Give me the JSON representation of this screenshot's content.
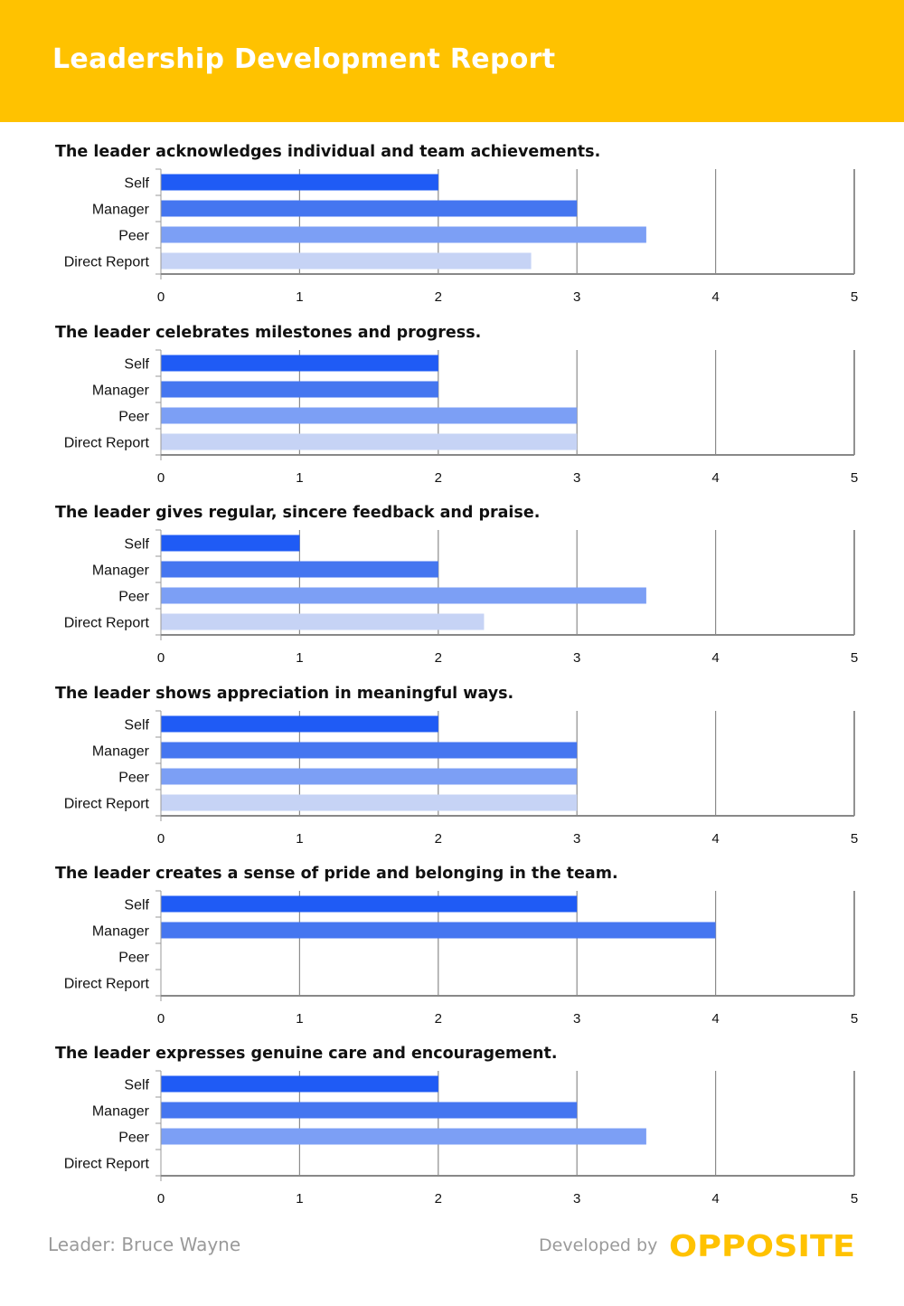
{
  "header": {
    "title": "Leadership Development Report"
  },
  "chart_data": [
    {
      "type": "bar",
      "title": "The leader acknowledges individual and team achievements.",
      "categories": [
        "Self",
        "Manager",
        "Peer",
        "Direct Report"
      ],
      "values": [
        2,
        3,
        3.5,
        2.67
      ],
      "xlim": [
        0,
        5
      ],
      "ticks": [
        "0",
        "1",
        "2",
        "3",
        "4",
        "5"
      ],
      "orientation": "horizontal",
      "grid": true
    },
    {
      "type": "bar",
      "title": "The leader celebrates milestones and progress.",
      "categories": [
        "Self",
        "Manager",
        "Peer",
        "Direct Report"
      ],
      "values": [
        2,
        2,
        3,
        3
      ],
      "xlim": [
        0,
        5
      ],
      "ticks": [
        "0",
        "1",
        "2",
        "3",
        "4",
        "5"
      ],
      "orientation": "horizontal",
      "grid": true
    },
    {
      "type": "bar",
      "title": "The leader gives regular, sincere feedback and praise.",
      "categories": [
        "Self",
        "Manager",
        "Peer",
        "Direct Report"
      ],
      "values": [
        1,
        2,
        3.5,
        2.33
      ],
      "xlim": [
        0,
        5
      ],
      "ticks": [
        "0",
        "1",
        "2",
        "3",
        "4",
        "5"
      ],
      "orientation": "horizontal",
      "grid": true
    },
    {
      "type": "bar",
      "title": "The leader shows appreciation in meaningful ways.",
      "categories": [
        "Self",
        "Manager",
        "Peer",
        "Direct Report"
      ],
      "values": [
        2,
        3,
        3,
        3
      ],
      "xlim": [
        0,
        5
      ],
      "ticks": [
        "0",
        "1",
        "2",
        "3",
        "4",
        "5"
      ],
      "orientation": "horizontal",
      "grid": true
    },
    {
      "type": "bar",
      "title": "The leader creates a sense of pride and belonging in the team.",
      "categories": [
        "Self",
        "Manager",
        "Peer",
        "Direct Report"
      ],
      "values": [
        3,
        4,
        0,
        0
      ],
      "xlim": [
        0,
        5
      ],
      "ticks": [
        "0",
        "1",
        "2",
        "3",
        "4",
        "5"
      ],
      "orientation": "horizontal",
      "grid": true
    },
    {
      "type": "bar",
      "title": "The leader expresses genuine care and encouragement.",
      "categories": [
        "Self",
        "Manager",
        "Peer",
        "Direct Report"
      ],
      "values": [
        2,
        3,
        3.5,
        0
      ],
      "xlim": [
        0,
        5
      ],
      "ticks": [
        "0",
        "1",
        "2",
        "3",
        "4",
        "5"
      ],
      "orientation": "horizontal",
      "grid": true
    }
  ],
  "colors": {
    "header_bg": "#FFC200",
    "bar_self": "#1F5BF5",
    "bar_manager": "#4576F0",
    "bar_peer": "#7C9FF5",
    "bar_direct_report": "#C6D3F5",
    "grid": "#666666",
    "brand": "#FFC200"
  },
  "footer": {
    "leader": "Leader: Bruce Wayne",
    "developed_by": "Developed by",
    "brand": "OPPOSITE"
  }
}
